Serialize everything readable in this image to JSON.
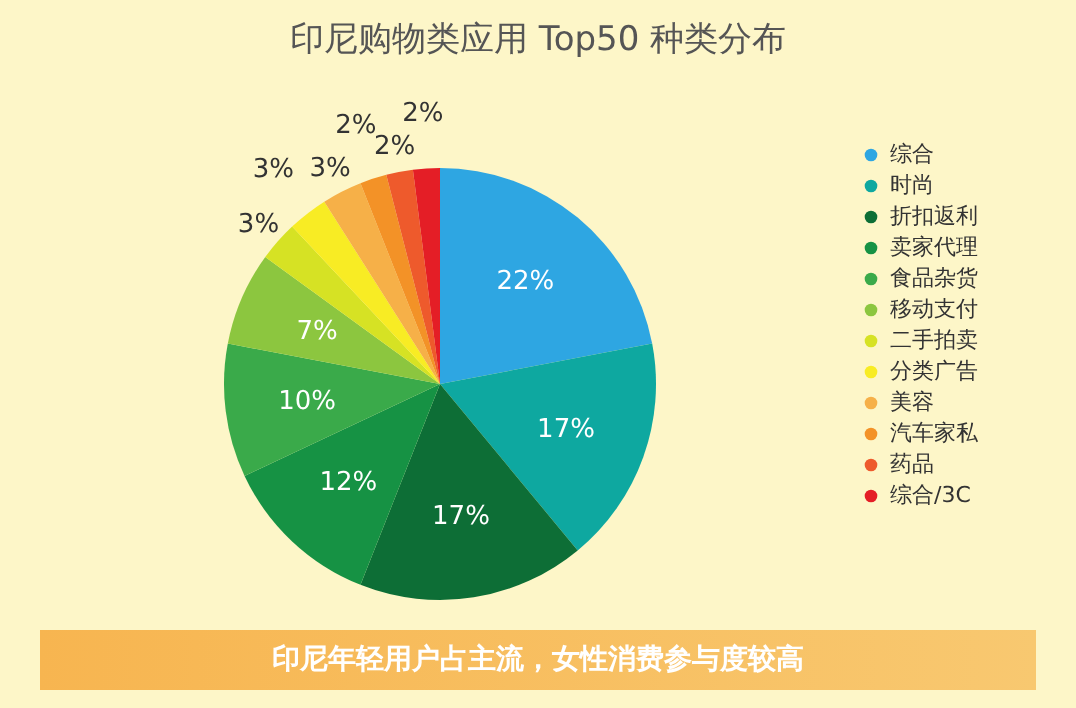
{
  "chart_data": {
    "type": "pie",
    "title": "印尼购物类应用 Top50 种类分布",
    "categories": [
      "综合",
      "时尚",
      "折扣返利",
      "卖家代理",
      "食品杂货",
      "移动支付",
      "二手拍卖",
      "分类广告",
      "美容",
      "汽车家私",
      "药品",
      "综合/3C"
    ],
    "values": [
      22,
      17,
      17,
      12,
      10,
      7,
      3,
      3,
      3,
      2,
      2,
      2
    ],
    "colors": [
      "#2ea6e2",
      "#0ea8a0",
      "#0d6e36",
      "#169244",
      "#3aaa4a",
      "#8cc63f",
      "#d6e224",
      "#f8ec24",
      "#f6b048",
      "#f39227",
      "#ee5a2c",
      "#e41e26"
    ],
    "value_labels": [
      "22%",
      "17%",
      "17%",
      "12%",
      "10%",
      "7%",
      "3%",
      "3%",
      "3%",
      "2%",
      "2%",
      "2%"
    ],
    "legend": "right",
    "annotations": [
      "印尼年轻用户占主流，女性消费参与度较高"
    ]
  }
}
